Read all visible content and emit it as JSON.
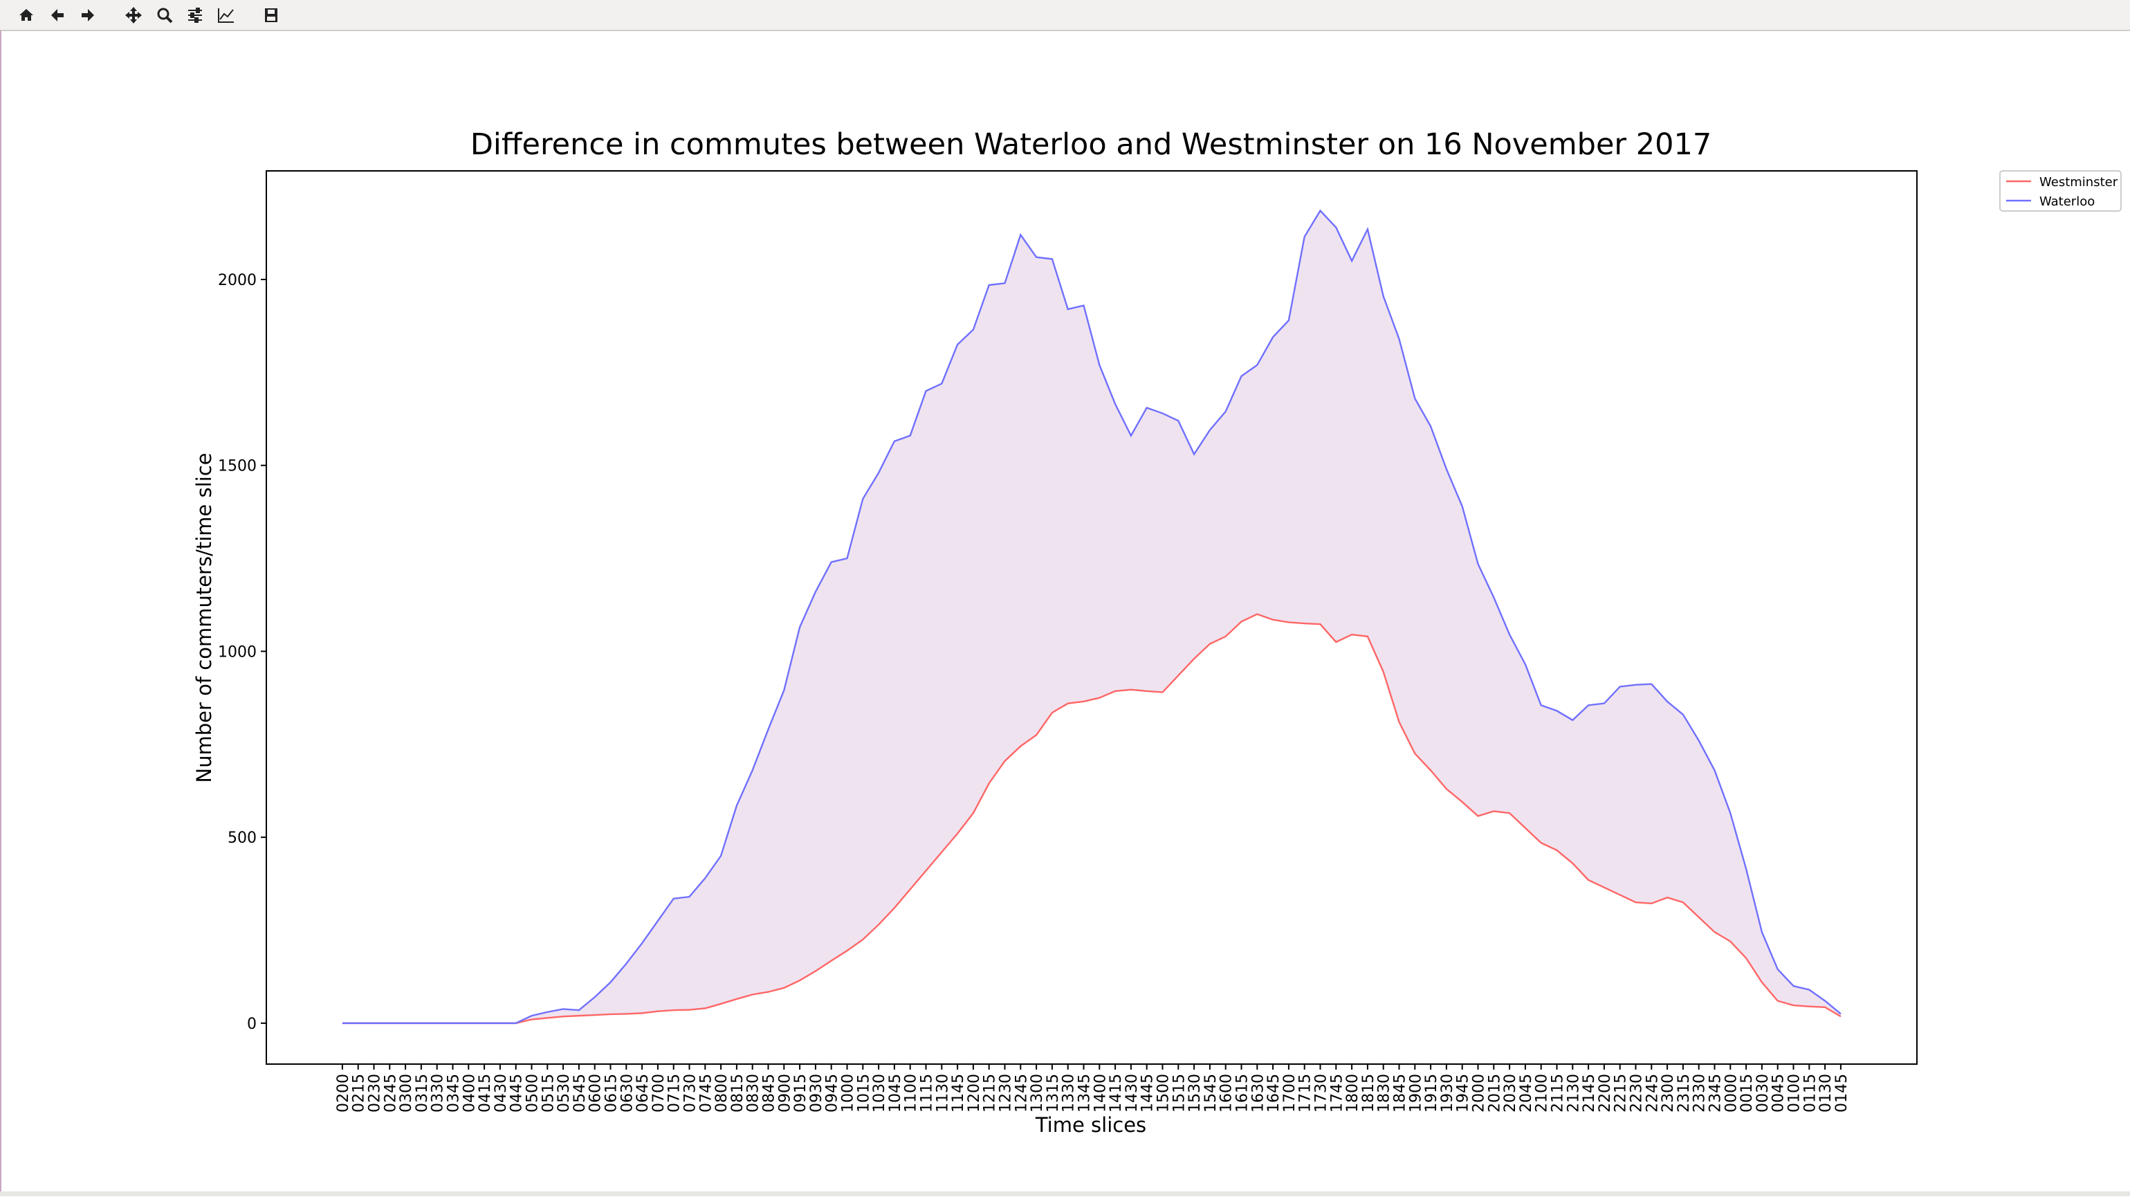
{
  "chart_data": {
    "type": "line",
    "title": "Difference in commutes between Waterloo and Westminster on 16 November 2017",
    "x_label": "Time slices",
    "y_label": "Number of commuters/time slice",
    "categories": [
      "0200",
      "0215",
      "0230",
      "0245",
      "0300",
      "0315",
      "0330",
      "0345",
      "0400",
      "0415",
      "0430",
      "0445",
      "0500",
      "0515",
      "0530",
      "0545",
      "0600",
      "0615",
      "0630",
      "0645",
      "0700",
      "0715",
      "0730",
      "0745",
      "0800",
      "0815",
      "0830",
      "0845",
      "0900",
      "0915",
      "0930",
      "0945",
      "1000",
      "1015",
      "1030",
      "1045",
      "1100",
      "1115",
      "1130",
      "1145",
      "1200",
      "1215",
      "1230",
      "1245",
      "1300",
      "1315",
      "1330",
      "1345",
      "1400",
      "1415",
      "1430",
      "1445",
      "1500",
      "1515",
      "1530",
      "1545",
      "1600",
      "1615",
      "1630",
      "1645",
      "1700",
      "1715",
      "1730",
      "1745",
      "1800",
      "1815",
      "1830",
      "1845",
      "1900",
      "1915",
      "1930",
      "1945",
      "2000",
      "2015",
      "2030",
      "2045",
      "2100",
      "2115",
      "2130",
      "2145",
      "2200",
      "2215",
      "2230",
      "2245",
      "2300",
      "2315",
      "2330",
      "2345",
      "0000",
      "0015",
      "0030",
      "0045",
      "0100",
      "0115",
      "0130",
      "0145"
    ],
    "series": [
      {
        "name": "Westminster",
        "color": "#ff6666",
        "values": [
          0,
          0,
          0,
          0,
          0,
          0,
          0,
          0,
          0,
          0,
          0,
          0,
          10,
          14,
          18,
          20,
          22,
          24,
          25,
          27,
          32,
          35,
          36,
          40,
          52,
          65,
          77,
          84,
          95,
          115,
          140,
          168,
          195,
          225,
          265,
          310,
          360,
          410,
          460,
          510,
          565,
          645,
          705,
          745,
          775,
          835,
          860,
          865,
          875,
          893,
          897,
          893,
          890,
          935,
          980,
          1020,
          1040,
          1080,
          1100,
          1085,
          1078,
          1075,
          1073,
          1025,
          1045,
          1040,
          945,
          810,
          725,
          680,
          630,
          595,
          557,
          570,
          565,
          525,
          485,
          465,
          430,
          385,
          365,
          345,
          325,
          322,
          338,
          325,
          285,
          245,
          220,
          175,
          110,
          60,
          48,
          45,
          43,
          18
        ]
      },
      {
        "name": "Waterloo",
        "color": "#7070ff",
        "values": [
          0,
          0,
          0,
          0,
          0,
          0,
          0,
          0,
          0,
          0,
          0,
          0,
          20,
          30,
          38,
          35,
          70,
          110,
          160,
          215,
          275,
          335,
          340,
          390,
          450,
          585,
          680,
          790,
          895,
          1065,
          1160,
          1240,
          1250,
          1410,
          1480,
          1565,
          1580,
          1700,
          1720,
          1825,
          1865,
          1985,
          1990,
          2120,
          2060,
          2055,
          1920,
          1930,
          1770,
          1665,
          1580,
          1655,
          1640,
          1620,
          1530,
          1595,
          1645,
          1740,
          1770,
          1845,
          1890,
          2115,
          2185,
          2140,
          2050,
          2135,
          1955,
          1840,
          1680,
          1605,
          1490,
          1390,
          1235,
          1145,
          1045,
          965,
          855,
          840,
          815,
          855,
          860,
          905,
          910,
          912,
          865,
          830,
          760,
          680,
          565,
          415,
          245,
          145,
          100,
          90,
          60,
          25
        ]
      }
    ],
    "fill_between": true,
    "fill_color": "#efe3f0",
    "ylim": [
      -110,
      2292
    ],
    "yticks": [
      0,
      500,
      1000,
      1500,
      2000
    ],
    "grid": false,
    "legend": "upper right outside"
  }
}
